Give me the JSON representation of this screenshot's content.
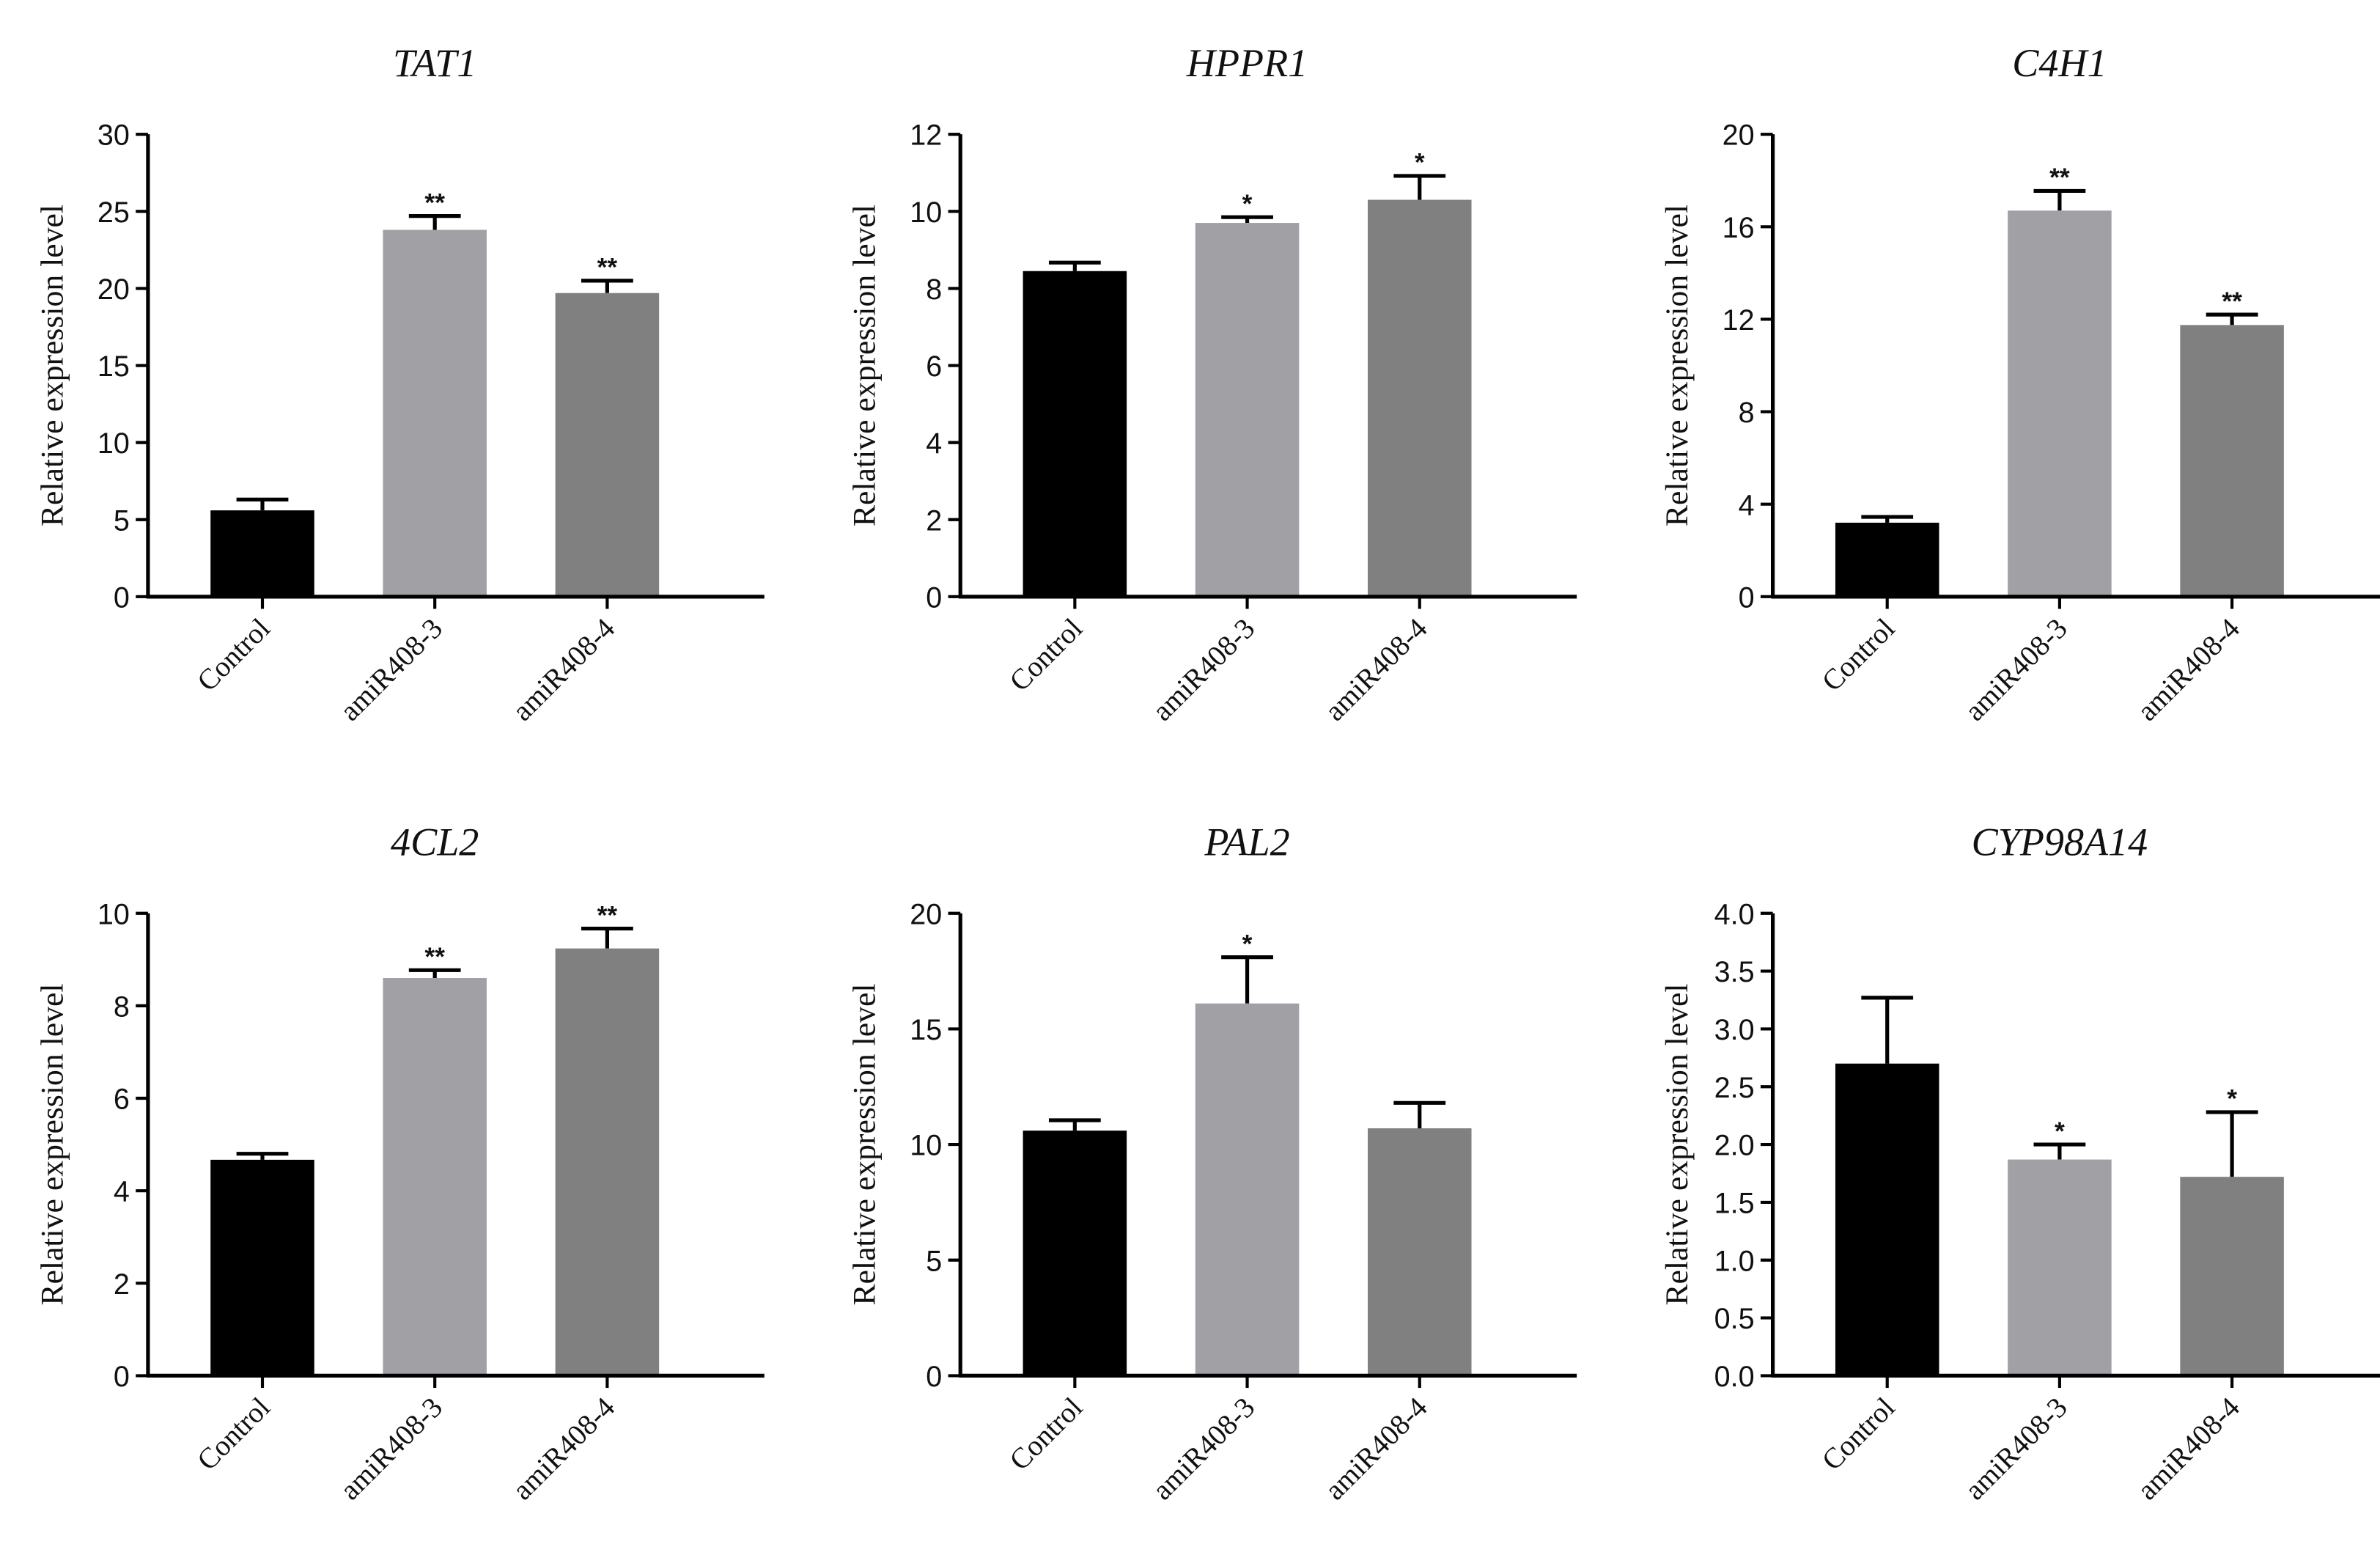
{
  "chart_data": [
    {
      "type": "bar",
      "title": "TAT1",
      "ylabel": "Relative expression level",
      "categories": [
        "Control",
        "amiR408-3",
        "amiR408-4"
      ],
      "values": [
        5.6,
        23.8,
        19.7
      ],
      "errors": [
        0.7,
        0.9,
        0.8
      ],
      "significance": [
        "",
        "**",
        "**"
      ],
      "ylim": [
        0,
        30
      ],
      "yticks": [
        "0",
        "5",
        "10",
        "15",
        "20",
        "25",
        "30"
      ]
    },
    {
      "type": "bar",
      "title": "HPPR1",
      "ylabel": "Relative expression level",
      "categories": [
        "Control",
        "amiR408-3",
        "amiR408-4"
      ],
      "values": [
        8.45,
        9.7,
        10.3
      ],
      "errors": [
        0.22,
        0.15,
        0.62
      ],
      "significance": [
        "",
        "*",
        "*"
      ],
      "ylim": [
        0,
        12
      ],
      "yticks": [
        "0",
        "2",
        "4",
        "6",
        "8",
        "10",
        "12"
      ]
    },
    {
      "type": "bar",
      "title": "C4H1",
      "ylabel": "Relative expression level",
      "categories": [
        "Control",
        "amiR408-3",
        "amiR408-4"
      ],
      "values": [
        3.2,
        16.7,
        11.75
      ],
      "errors": [
        0.25,
        0.85,
        0.45
      ],
      "significance": [
        "",
        "**",
        "**"
      ],
      "ylim": [
        0,
        20
      ],
      "yticks": [
        "0",
        "4",
        "8",
        "12",
        "16",
        "20"
      ]
    },
    {
      "type": "bar",
      "title": "4CL2",
      "ylabel": "Relative expression level",
      "categories": [
        "Control",
        "amiR408-3",
        "amiR408-4"
      ],
      "values": [
        4.67,
        8.6,
        9.24
      ],
      "errors": [
        0.13,
        0.17,
        0.43
      ],
      "significance": [
        "",
        "**",
        "**"
      ],
      "ylim": [
        0,
        10
      ],
      "yticks": [
        "0",
        "2",
        "4",
        "6",
        "8",
        "10"
      ]
    },
    {
      "type": "bar",
      "title": "PAL2",
      "ylabel": "Relative expression level",
      "categories": [
        "Control",
        "amiR408-3",
        "amiR408-4"
      ],
      "values": [
        10.6,
        16.1,
        10.7
      ],
      "errors": [
        0.45,
        2.0,
        1.1
      ],
      "significance": [
        "",
        "*",
        ""
      ],
      "ylim": [
        0,
        20
      ],
      "yticks": [
        "0",
        "5",
        "10",
        "15",
        "20"
      ]
    },
    {
      "type": "bar",
      "title": "CYP98A14",
      "ylabel": "Relative expression level",
      "categories": [
        "Control",
        "amiR408-3",
        "amiR408-4"
      ],
      "values": [
        2.7,
        1.87,
        1.72
      ],
      "errors": [
        0.57,
        0.13,
        0.56
      ],
      "significance": [
        "",
        "*",
        "*"
      ],
      "ylim": [
        0,
        4
      ],
      "yticks": [
        "0.0",
        "0.5",
        "1.0",
        "1.5",
        "2.0",
        "2.5",
        "3.0",
        "3.5",
        "4.0"
      ]
    }
  ],
  "colors": {
    "Control": "#000000",
    "amiR408-3": "#a1a1a5",
    "amiR408-4": "#808080"
  }
}
